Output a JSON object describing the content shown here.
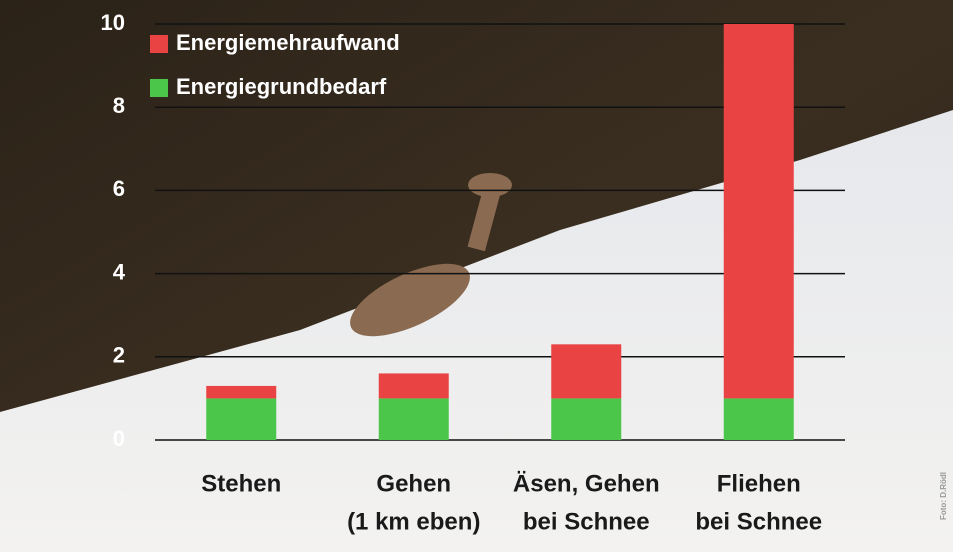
{
  "chart_data": {
    "type": "stacked-bar",
    "categories": [
      [
        "Stehen"
      ],
      [
        "Gehen",
        "(1 km eben)"
      ],
      [
        "Äsen, Gehen",
        "bei Schnee"
      ],
      [
        "Fliehen",
        "bei Schnee"
      ]
    ],
    "series": [
      {
        "name": "Energiegrundbedarf",
        "color": "#4cc64a",
        "values": [
          1,
          1,
          1,
          1
        ]
      },
      {
        "name": "Energiemehraufwand",
        "color": "#ea4344",
        "values": [
          0.3,
          0.6,
          1.3,
          9
        ]
      }
    ],
    "ylim": [
      0,
      10
    ],
    "yticks": [
      0,
      2,
      4,
      6,
      8,
      10
    ],
    "grid": true,
    "credit": "Foto: D.Rödl"
  }
}
